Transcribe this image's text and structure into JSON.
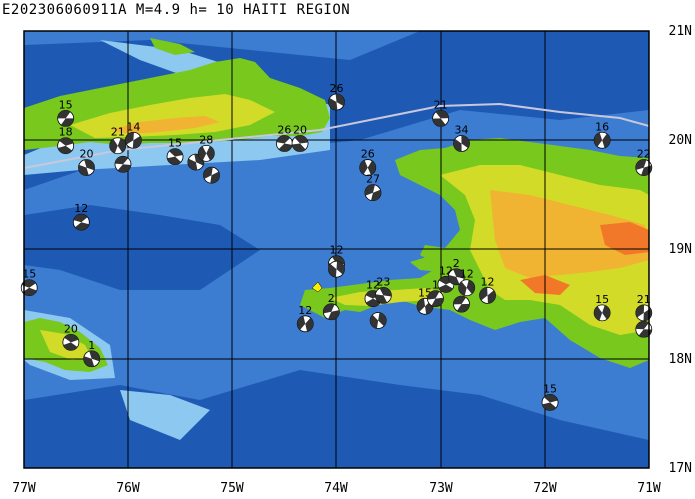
{
  "title": "E202306060911A M=4.9 h= 10 HAITI REGION",
  "axes": {
    "lon_labels": [
      "77W",
      "76W",
      "75W",
      "74W",
      "73W",
      "72W",
      "71W"
    ],
    "lat_labels": [
      "21N",
      "20N",
      "19N",
      "18N",
      "17N"
    ],
    "lon_range": [
      -77,
      -71
    ],
    "lat_range": [
      17,
      21
    ]
  },
  "colors": {
    "deep_ocean": "#1e5ab4",
    "ocean": "#3c7dd2",
    "shelf": "#8cc8f0",
    "lowland": "#78c81e",
    "upland": "#d2dc28",
    "highland": "#f0b432",
    "peak": "#f07828",
    "grid": "#000000",
    "track": "#c8c8dc",
    "focal_dark": "#333333",
    "focal_light": "#ffffff",
    "marker_yellow": "#ffee00"
  },
  "events": [
    {
      "label": "15",
      "lon": -76.6,
      "lat": 20.2
    },
    {
      "label": "18",
      "lon": -76.6,
      "lat": 19.95
    },
    {
      "label": "20",
      "lon": -76.4,
      "lat": 19.75
    },
    {
      "label": "21",
      "lon": -76.1,
      "lat": 19.95
    },
    {
      "label": "14",
      "lon": -75.95,
      "lat": 20.0
    },
    {
      "label": "",
      "lon": -76.05,
      "lat": 19.78
    },
    {
      "label": "15",
      "lon": -75.55,
      "lat": 19.85
    },
    {
      "label": "",
      "lon": -75.35,
      "lat": 19.8
    },
    {
      "label": "28",
      "lon": -75.25,
      "lat": 19.88
    },
    {
      "label": "",
      "lon": -75.2,
      "lat": 19.68
    },
    {
      "label": "26",
      "lon": -74.5,
      "lat": 19.97
    },
    {
      "label": "20",
      "lon": -74.35,
      "lat": 19.97
    },
    {
      "label": "26",
      "lon": -74.0,
      "lat": 20.35
    },
    {
      "label": "26",
      "lon": -73.7,
      "lat": 19.75
    },
    {
      "label": "27",
      "lon": -73.65,
      "lat": 19.52
    },
    {
      "label": "12",
      "lon": -76.45,
      "lat": 19.25
    },
    {
      "label": "21",
      "lon": -73.0,
      "lat": 20.2
    },
    {
      "label": "34",
      "lon": -72.8,
      "lat": 19.97
    },
    {
      "label": "16",
      "lon": -71.45,
      "lat": 20.0
    },
    {
      "label": "22",
      "lon": -71.05,
      "lat": 19.75
    },
    {
      "label": "15",
      "lon": -76.95,
      "lat": 18.65
    },
    {
      "label": "12",
      "lon": -74.0,
      "lat": 18.87
    },
    {
      "label": "",
      "lon": -74.0,
      "lat": 18.82
    },
    {
      "label": "12",
      "lon": -74.3,
      "lat": 18.32
    },
    {
      "label": "2",
      "lon": -74.05,
      "lat": 18.43
    },
    {
      "label": "12",
      "lon": -73.65,
      "lat": 18.55
    },
    {
      "label": "23",
      "lon": -73.55,
      "lat": 18.58
    },
    {
      "label": "",
      "lon": -73.6,
      "lat": 18.35
    },
    {
      "label": "15",
      "lon": -73.15,
      "lat": 18.48
    },
    {
      "label": "1",
      "lon": -73.05,
      "lat": 18.55
    },
    {
      "label": "12",
      "lon": -72.95,
      "lat": 18.68
    },
    {
      "label": "2",
      "lon": -72.85,
      "lat": 18.75
    },
    {
      "label": "12",
      "lon": -72.75,
      "lat": 18.65
    },
    {
      "label": "12",
      "lon": -72.55,
      "lat": 18.58
    },
    {
      "label": "",
      "lon": -72.8,
      "lat": 18.5
    },
    {
      "label": "20",
      "lon": -76.55,
      "lat": 18.15
    },
    {
      "label": "1",
      "lon": -76.35,
      "lat": 18.0
    },
    {
      "label": "15",
      "lon": -71.45,
      "lat": 18.42
    },
    {
      "label": "21",
      "lon": -71.05,
      "lat": 18.42
    },
    {
      "label": "",
      "lon": -71.05,
      "lat": 18.27
    },
    {
      "label": "15",
      "lon": -71.95,
      "lat": 17.6
    }
  ]
}
